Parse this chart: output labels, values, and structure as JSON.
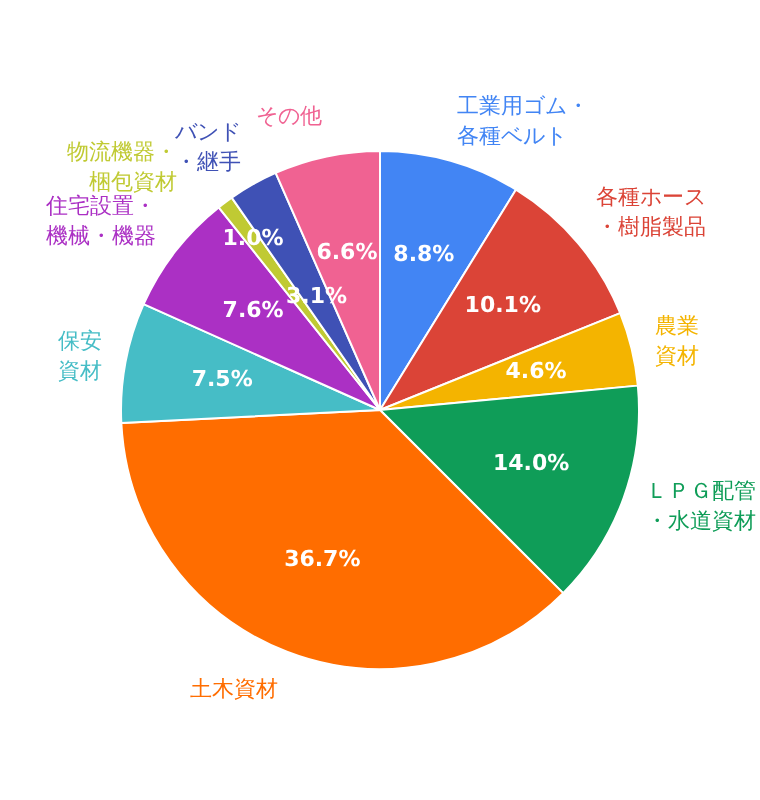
{
  "chart_data": {
    "type": "pie",
    "categories": [
      "工業用ゴム・各種ベルト",
      "各種ホース・樹脂製品",
      "農業資材",
      "ＬＰＧ配管・水道資材",
      "土木資材",
      "保安資材",
      "住宅設置・機械・機器",
      "物流機器・梱包資材",
      "バンド・継手",
      "その他"
    ],
    "values": [
      8.8,
      10.1,
      4.6,
      14.0,
      36.7,
      7.5,
      7.6,
      1.0,
      3.1,
      6.6
    ],
    "value_labels": [
      "8.8%",
      "10.1%",
      "4.6%",
      "14.0%",
      "36.7%",
      "7.5%",
      "7.6%",
      "1.0%",
      "3.1%",
      "6.6%"
    ],
    "colors": [
      "#4285f4",
      "#db4437",
      "#f4b400",
      "#0f9d58",
      "#ff6d00",
      "#46bdc6",
      "#ab30c4",
      "#c0ca33",
      "#3f51b5",
      "#f06292"
    ]
  }
}
